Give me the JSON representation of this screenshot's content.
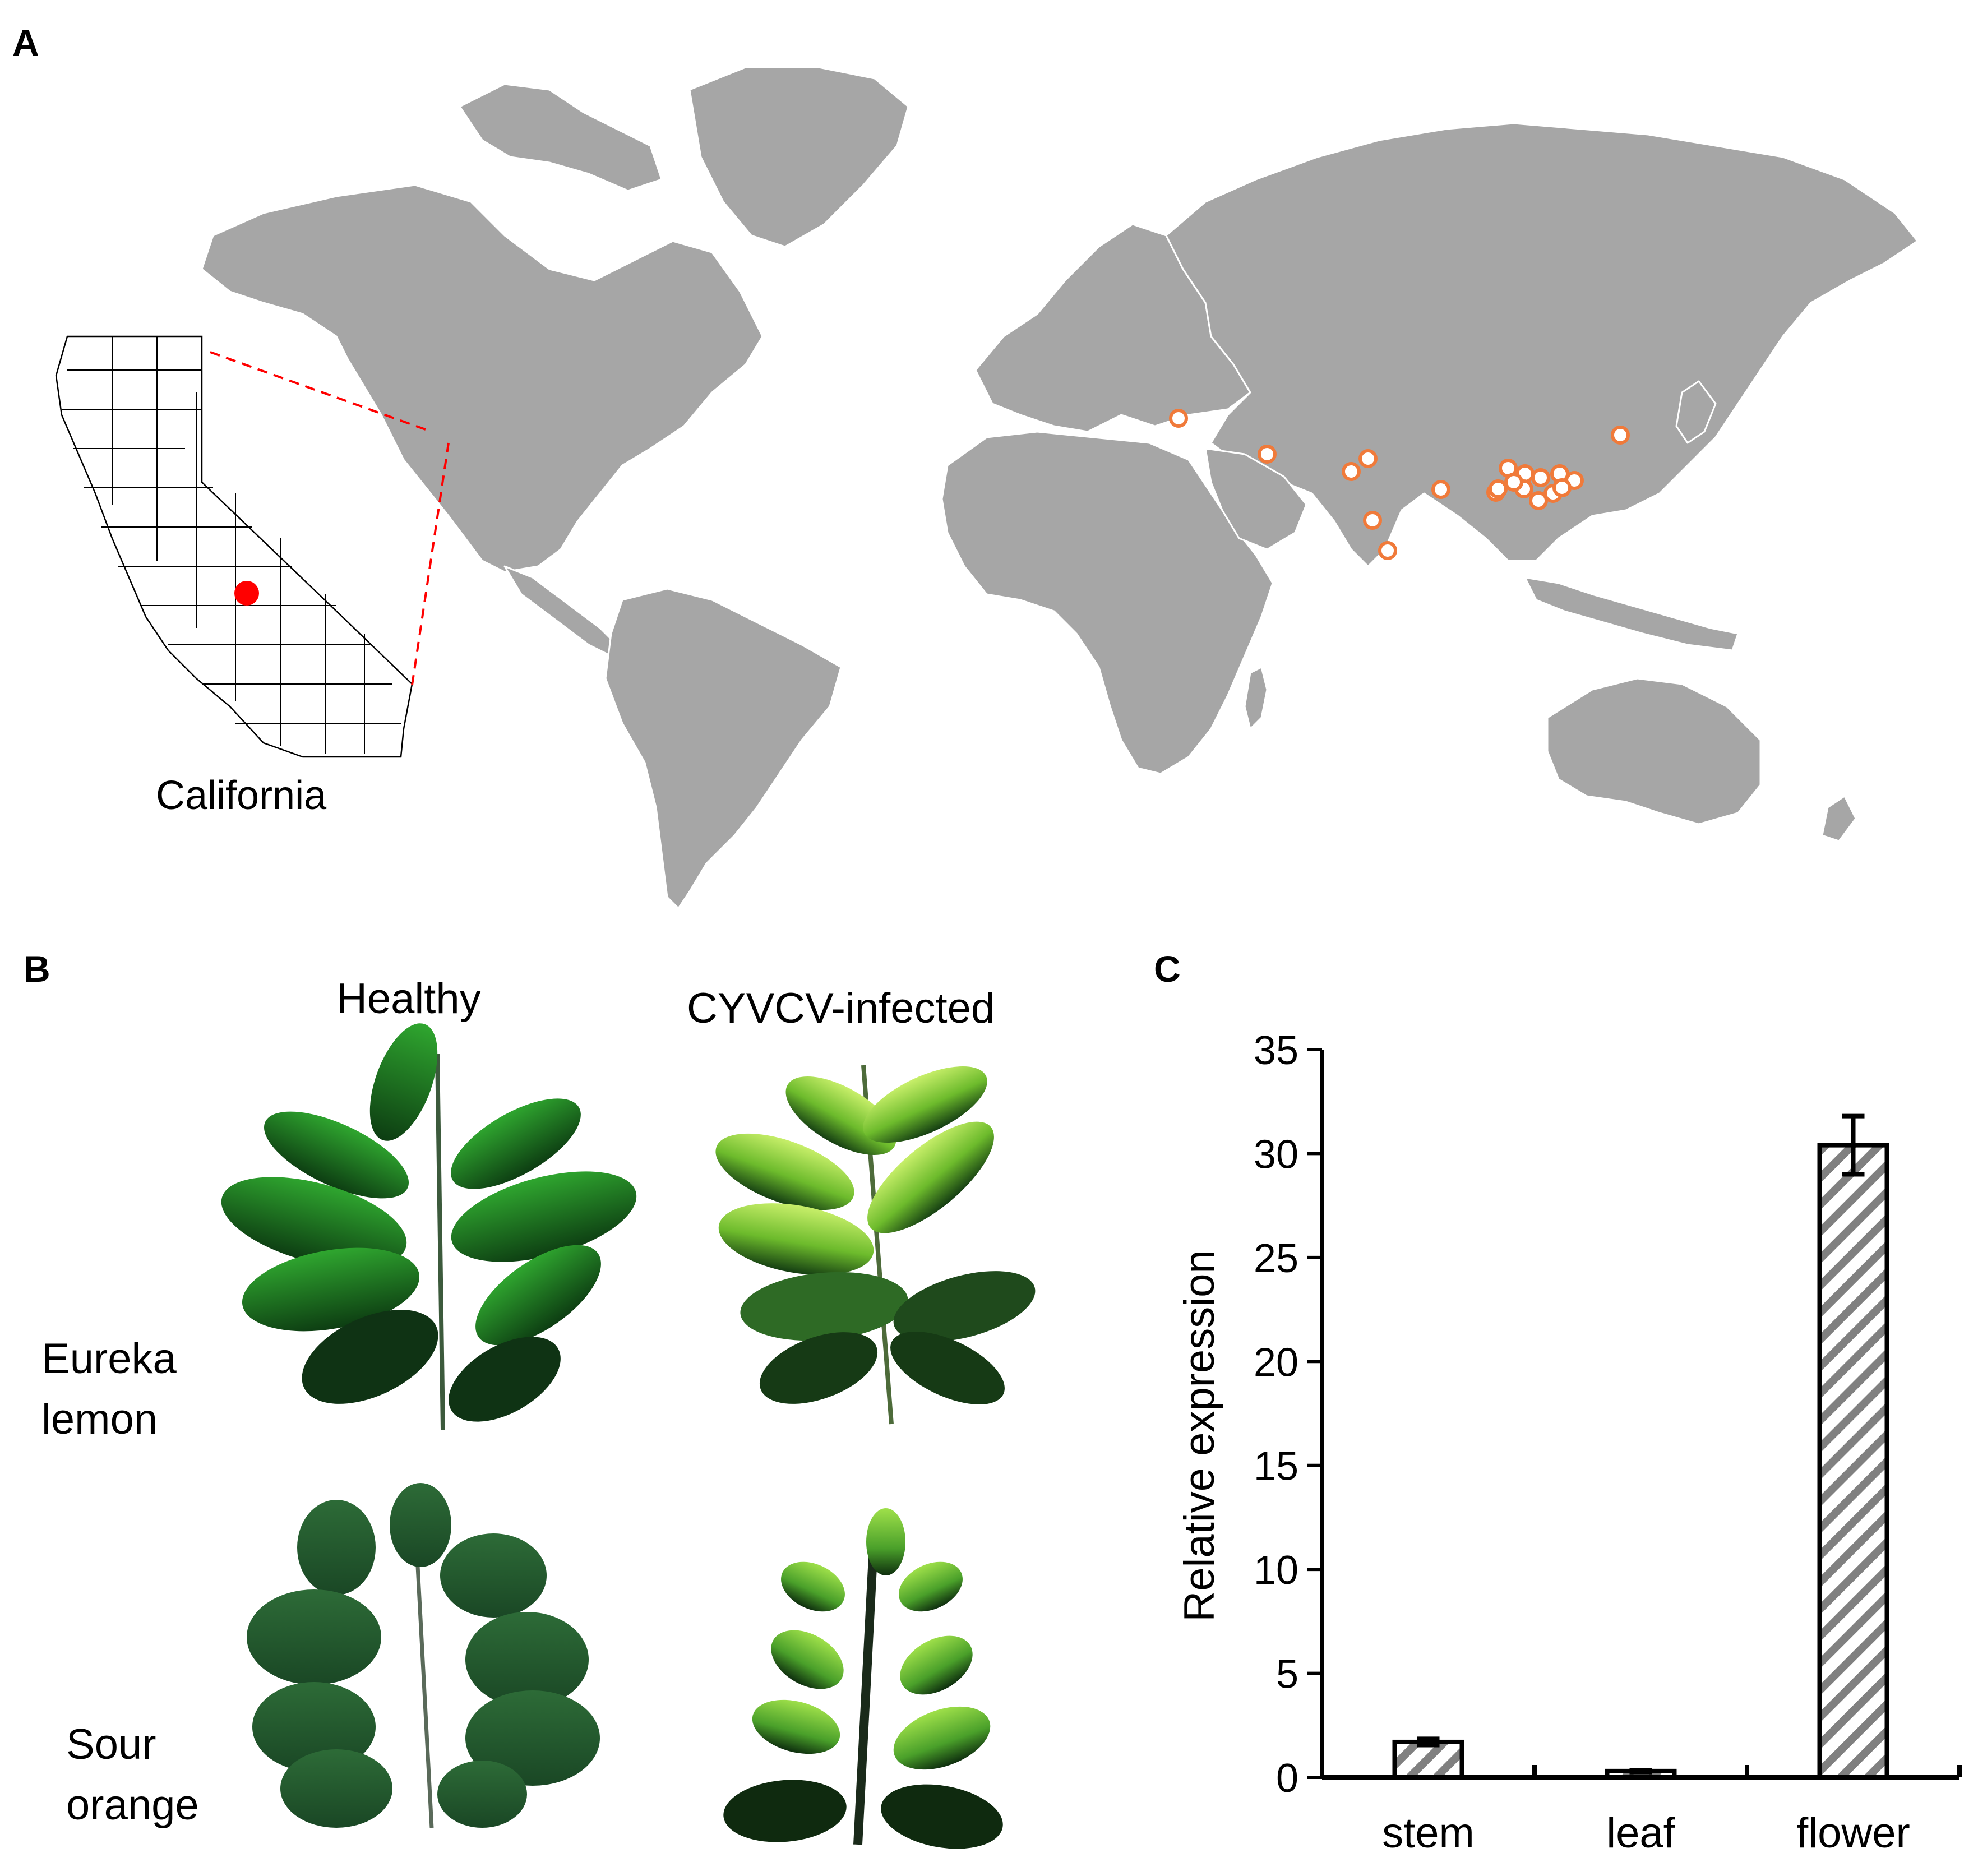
{
  "panel_a": {
    "letter": "A",
    "inset_label": "California",
    "colors": {
      "land": "#a6a6a6",
      "marker_fill": "#ffffff",
      "marker_stroke": "#f07a3a",
      "inset_marker": "#ff0000",
      "connector": "#ff0000"
    },
    "marker_count": 20
  },
  "panel_b": {
    "letter": "B",
    "column_headers": [
      "Healthy",
      "CYVCV-infected"
    ],
    "row_labels": [
      {
        "line1": "Eureka",
        "line2": "lemon"
      },
      {
        "line1": "Sour",
        "line2": "orange"
      }
    ]
  },
  "panel_c": {
    "letter": "C"
  },
  "chart_data": {
    "type": "bar",
    "categories": [
      "stem",
      "leaf",
      "flower"
    ],
    "values": [
      1.7,
      0.3,
      30.4
    ],
    "errors": [
      0.15,
      0.05,
      1.4
    ],
    "ylabel": "Relative expression",
    "xlabel": "",
    "ylim": [
      0,
      35
    ],
    "yticks": [
      "0",
      "5",
      "10",
      "15",
      "20",
      "25",
      "30",
      "35"
    ],
    "ytick_values": [
      0,
      5,
      10,
      15,
      20,
      25,
      30,
      35
    ],
    "bar_pattern": "diagonal hatch",
    "hatch_color": "#7f7f7f",
    "grid": false
  }
}
